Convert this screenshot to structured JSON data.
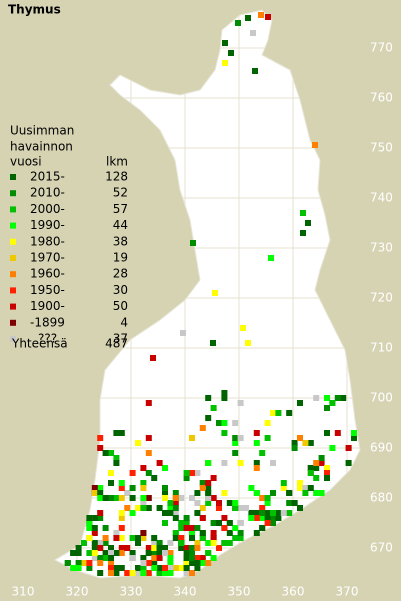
{
  "title": "Thymus",
  "legend": {
    "heading": [
      "Uusimman",
      "havainnon",
      "vuosi"
    ],
    "count_heading": "lkm",
    "rows": [
      {
        "label": "2015-",
        "count": 128,
        "color": "#006400"
      },
      {
        "label": "2010-",
        "count": 52,
        "color": "#008c00"
      },
      {
        "label": "2000-",
        "count": 57,
        "color": "#00c000"
      },
      {
        "label": "1990-",
        "count": 44,
        "color": "#00ff00"
      },
      {
        "label": "1980-",
        "count": 38,
        "color": "#ffff00"
      },
      {
        "label": "1970-",
        "count": 19,
        "color": "#f0c800"
      },
      {
        "label": "1960-",
        "count": 28,
        "color": "#ff8000"
      },
      {
        "label": "1950-",
        "count": 30,
        "color": "#ff2000"
      },
      {
        "label": "1900-",
        "count": 50,
        "color": "#c80000"
      },
      {
        "label": "-1899",
        "count": 4,
        "color": "#800000"
      },
      {
        "label": "???",
        "count": 37,
        "color": "#c8c8c8"
      }
    ],
    "total_label": "Yhteensä",
    "total": 487
  },
  "y_axis": [
    770,
    760,
    750,
    740,
    730,
    720,
    710,
    700,
    690,
    680,
    670
  ],
  "x_axis": [
    310,
    320,
    330,
    340,
    350,
    360,
    370
  ]
}
